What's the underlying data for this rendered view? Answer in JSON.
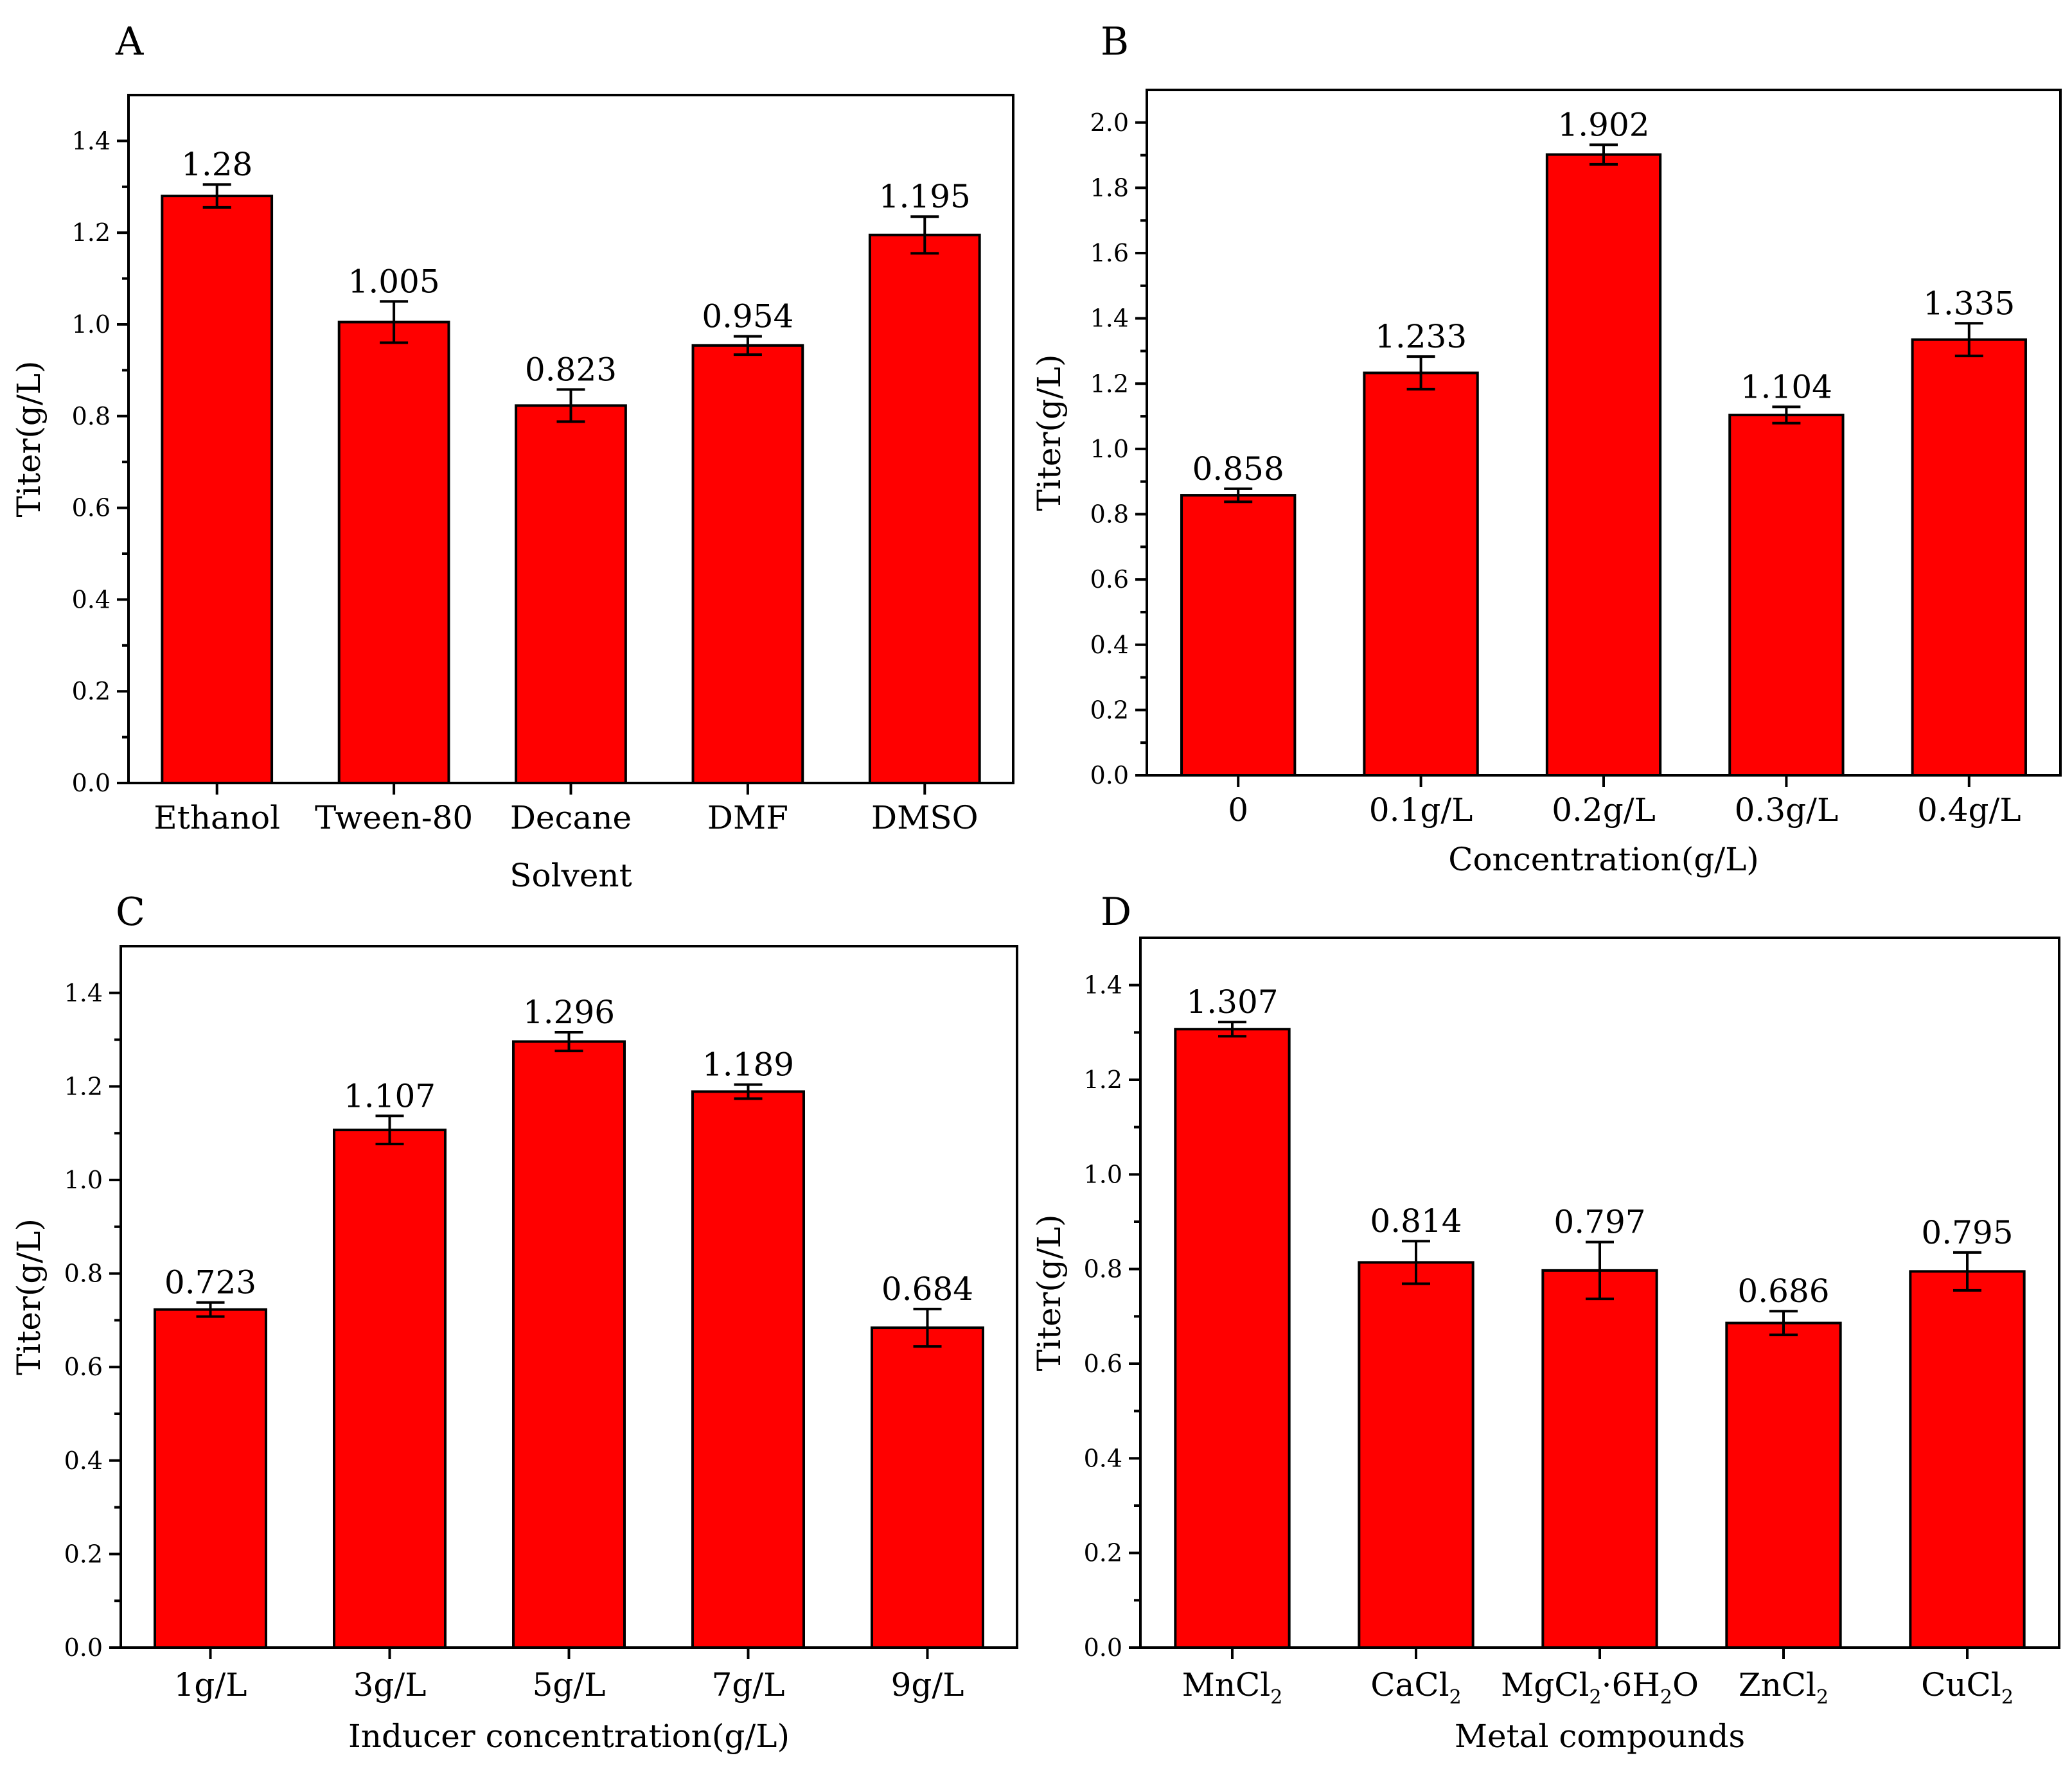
{
  "chart_data": [
    {
      "type": "bar",
      "panel": "A",
      "categories": [
        "Ethanol",
        "Tween-80",
        "Decane",
        "DMF",
        "DMSO"
      ],
      "category_labels": [
        [
          "Ethanol"
        ],
        [
          "Tween-80"
        ],
        [
          "Decane"
        ],
        [
          "DMF"
        ],
        [
          "DMSO"
        ]
      ],
      "values": [
        1.28,
        1.005,
        0.823,
        0.954,
        1.195
      ],
      "value_labels": [
        "1.28",
        "1.005",
        "0.823",
        "0.954",
        "1.195"
      ],
      "errors": [
        0.025,
        0.045,
        0.035,
        0.02,
        0.04
      ],
      "xlabel": "Solvent",
      "ylabel": "Titer(g/L)",
      "ylim": [
        0,
        1.5
      ],
      "yticks": [
        0.0,
        0.2,
        0.4,
        0.6,
        0.8,
        1.0,
        1.2,
        1.4
      ],
      "ytick_labels": [
        "0.0",
        "0.2",
        "0.4",
        "0.6",
        "0.8",
        "1.0",
        "1.2",
        "1.4"
      ],
      "bar_color": "#ff0000"
    },
    {
      "type": "bar",
      "panel": "B",
      "categories": [
        "0",
        "0.1g/L",
        "0.2g/L",
        "0.3g/L",
        "0.4g/L"
      ],
      "category_labels": [
        [
          "0"
        ],
        [
          "0.1g/L"
        ],
        [
          "0.2g/L"
        ],
        [
          "0.3g/L"
        ],
        [
          "0.4g/L"
        ]
      ],
      "values": [
        0.858,
        1.233,
        1.902,
        1.104,
        1.335
      ],
      "value_labels": [
        "0.858",
        "1.233",
        "1.902",
        "1.104",
        "1.335"
      ],
      "errors": [
        0.02,
        0.05,
        0.03,
        0.025,
        0.05
      ],
      "xlabel": "Concentration(g/L)",
      "ylabel": "Titer(g/L)",
      "ylim": [
        0,
        2.1
      ],
      "yticks": [
        0.0,
        0.2,
        0.4,
        0.6,
        0.8,
        1.0,
        1.2,
        1.4,
        1.6,
        1.8,
        2.0
      ],
      "ytick_labels": [
        "0.0",
        "0.2",
        "0.4",
        "0.6",
        "0.8",
        "1.0",
        "1.2",
        "1.4",
        "1.6",
        "1.8",
        "2.0"
      ],
      "bar_color": "#ff0000"
    },
    {
      "type": "bar",
      "panel": "C",
      "categories": [
        "1g/L",
        "3g/L",
        "5g/L",
        "7g/L",
        "9g/L"
      ],
      "category_labels": [
        [
          "1g/L"
        ],
        [
          "3g/L"
        ],
        [
          "5g/L"
        ],
        [
          "7g/L"
        ],
        [
          "9g/L"
        ]
      ],
      "values": [
        0.723,
        1.107,
        1.296,
        1.189,
        0.684
      ],
      "value_labels": [
        "0.723",
        "1.107",
        "1.296",
        "1.189",
        "0.684"
      ],
      "errors": [
        0.015,
        0.03,
        0.02,
        0.015,
        0.04
      ],
      "xlabel": "Inducer concentration(g/L)",
      "ylabel": "Titer(g/L)",
      "ylim": [
        0,
        1.5
      ],
      "yticks": [
        0.0,
        0.2,
        0.4,
        0.6,
        0.8,
        1.0,
        1.2,
        1.4
      ],
      "ytick_labels": [
        "0.0",
        "0.2",
        "0.4",
        "0.6",
        "0.8",
        "1.0",
        "1.2",
        "1.4"
      ],
      "bar_color": "#ff0000"
    },
    {
      "type": "bar",
      "panel": "D",
      "categories": [
        "MnCl2",
        "CaCl2",
        "MgCl2·6H2O",
        "ZnCl2",
        "CuCl2"
      ],
      "category_labels": [
        [
          "MnCl",
          "2"
        ],
        [
          "CaCl",
          "2"
        ],
        [
          "MgCl",
          "2",
          "·6H",
          "2",
          "O"
        ],
        [
          "ZnCl",
          "2"
        ],
        [
          "CuCl",
          "2"
        ]
      ],
      "values": [
        1.307,
        0.814,
        0.797,
        0.686,
        0.795
      ],
      "value_labels": [
        "1.307",
        "0.814",
        "0.797",
        "0.686",
        "0.795"
      ],
      "errors": [
        0.015,
        0.045,
        0.06,
        0.025,
        0.04
      ],
      "xlabel": "Metal compounds",
      "ylabel": "Titer(g/L)",
      "ylim": [
        0,
        1.5
      ],
      "yticks": [
        0.0,
        0.2,
        0.4,
        0.6,
        0.8,
        1.0,
        1.2,
        1.4
      ],
      "ytick_labels": [
        "0.0",
        "0.2",
        "0.4",
        "0.6",
        "0.8",
        "1.0",
        "1.2",
        "1.4"
      ],
      "bar_color": "#ff0000"
    }
  ]
}
